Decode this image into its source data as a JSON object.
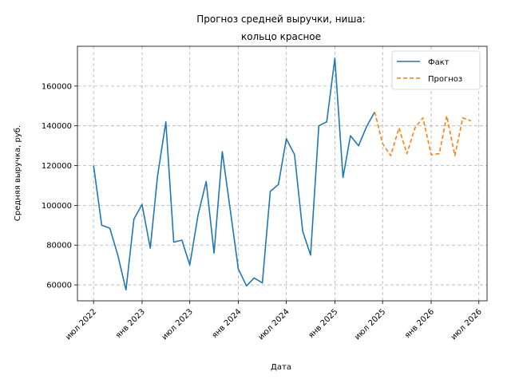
{
  "chart_data": {
    "type": "line",
    "title": [
      "Прогноз средней выручки, ниша:",
      "кольцо красное"
    ],
    "xlabel": "Дата",
    "ylabel": "Средняя выручка, руб.",
    "x_range": [
      "2022-05-01",
      "2026-08-01"
    ],
    "ylim": [
      52000,
      180000
    ],
    "grid": true,
    "legend_position": "top-right",
    "x_ticks": [
      {
        "date": "2022-07-01",
        "label": "июл 2022"
      },
      {
        "date": "2023-01-01",
        "label": "янв 2023"
      },
      {
        "date": "2023-07-01",
        "label": "июл 2023"
      },
      {
        "date": "2024-01-01",
        "label": "янв 2024"
      },
      {
        "date": "2024-07-01",
        "label": "июл 2024"
      },
      {
        "date": "2025-01-01",
        "label": "янв 2025"
      },
      {
        "date": "2025-07-01",
        "label": "июл 2025"
      },
      {
        "date": "2026-01-01",
        "label": "янв 2026"
      },
      {
        "date": "2026-07-01",
        "label": "июл 2026"
      }
    ],
    "y_ticks": [
      {
        "value": 60000,
        "label": "60000"
      },
      {
        "value": 80000,
        "label": "80000"
      },
      {
        "value": 100000,
        "label": "100000"
      },
      {
        "value": 120000,
        "label": "120000"
      },
      {
        "value": 140000,
        "label": "140000"
      },
      {
        "value": 160000,
        "label": "160000"
      }
    ],
    "series": [
      {
        "name": "Факт",
        "color": "#1f77b4",
        "style": "solid",
        "x": [
          "2022-07-01",
          "2022-08-01",
          "2022-09-01",
          "2022-10-01",
          "2022-11-01",
          "2022-12-01",
          "2023-01-01",
          "2023-02-01",
          "2023-03-01",
          "2023-04-01",
          "2023-05-01",
          "2023-06-01",
          "2023-07-01",
          "2023-08-01",
          "2023-09-01",
          "2023-10-01",
          "2023-11-01",
          "2023-12-01",
          "2024-01-01",
          "2024-02-01",
          "2024-03-01",
          "2024-04-01",
          "2024-05-01",
          "2024-06-01",
          "2024-07-01",
          "2024-08-01",
          "2024-09-01",
          "2024-10-01",
          "2024-11-01",
          "2024-12-01",
          "2025-01-01",
          "2025-02-01",
          "2025-03-01",
          "2025-04-01",
          "2025-05-01",
          "2025-06-01"
        ],
        "values": [
          120000,
          90000,
          88500,
          75000,
          57500,
          93000,
          100500,
          78500,
          115000,
          142000,
          81500,
          82500,
          70000,
          95000,
          112000,
          76000,
          127000,
          98000,
          68000,
          59500,
          63500,
          61000,
          107000,
          110500,
          133500,
          125500,
          87000,
          75000,
          140000,
          142000,
          174000,
          114000,
          135000,
          130000,
          139500,
          147000
        ]
      },
      {
        "name": "Прогноз",
        "color": "#ff7f0e",
        "style": "dashed",
        "x": [
          "2025-06-01",
          "2025-07-01",
          "2025-08-01",
          "2025-09-01",
          "2025-10-01",
          "2025-11-01",
          "2025-12-01",
          "2026-01-01",
          "2026-02-01",
          "2026-03-01",
          "2026-04-01",
          "2026-05-01",
          "2026-06-01"
        ],
        "values": [
          147000,
          131000,
          125000,
          139000,
          126000,
          139000,
          144000,
          125500,
          126000,
          145000,
          125000,
          144000,
          142500
        ]
      }
    ]
  }
}
